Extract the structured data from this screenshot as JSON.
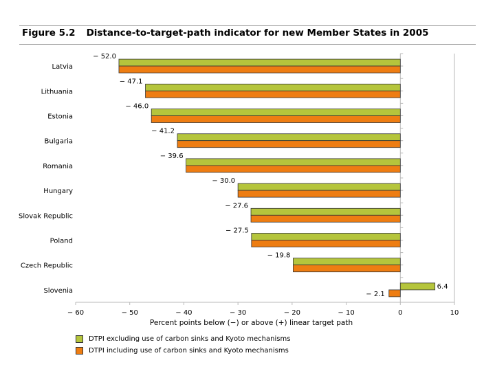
{
  "figure": {
    "number": "Figure 5.2",
    "title": "Distance-to-target-path indicator for new Member States in 2005"
  },
  "colors": {
    "series1": "#b5c53c",
    "series2": "#ee7d12",
    "border": "#333333",
    "grid": "#b8b8b8"
  },
  "chart_data": {
    "type": "bar",
    "orientation": "horizontal",
    "title": "Distance-to-target-path indicator for new Member States in 2005",
    "xlabel": "Percent points below (−) or above (+) linear target path",
    "ylabel": "",
    "xlim": [
      -60,
      10
    ],
    "xticks": [
      -60,
      -50,
      -40,
      -30,
      -20,
      -10,
      0,
      10
    ],
    "xtick_labels": [
      "− 60",
      "− 50",
      "− 40",
      "− 30",
      "− 20",
      "− 10",
      "0",
      "10"
    ],
    "categories": [
      "Latvia",
      "Lithuania",
      "Estonia",
      "Bulgaria",
      "Romania",
      "Hungary",
      "Slovak Republic",
      "Poland",
      "Czech Republic",
      "Slovenia"
    ],
    "series": [
      {
        "name": "DTPI excluding use of carbon sinks and Kyoto mechanisms",
        "legend_label": "DTPI excluding use of carbon sinks and Kyoto mechanisms",
        "values": [
          -52.0,
          -47.1,
          -46.0,
          -41.2,
          -39.6,
          -30.0,
          -27.6,
          -27.5,
          -19.8,
          6.4
        ]
      },
      {
        "name": "DTPI including use of carbon sinks and Kyoto mechanisms",
        "legend_label": "DTPI including use of carbon sinks and Kyoto mechanisms",
        "values": [
          -52.0,
          -47.1,
          -46.0,
          -41.2,
          -39.6,
          -30.0,
          -27.6,
          -27.5,
          -19.8,
          -2.1
        ]
      }
    ],
    "data_labels": [
      "− 52.0",
      "− 47.1",
      "− 46.0",
      "− 41.2",
      "− 39.6",
      "− 30.0",
      "− 27.6",
      "− 27.5",
      "− 19.8",
      "6.4"
    ],
    "extra_label": "− 2.1",
    "legend_position": "bottom-left",
    "grid": false
  }
}
